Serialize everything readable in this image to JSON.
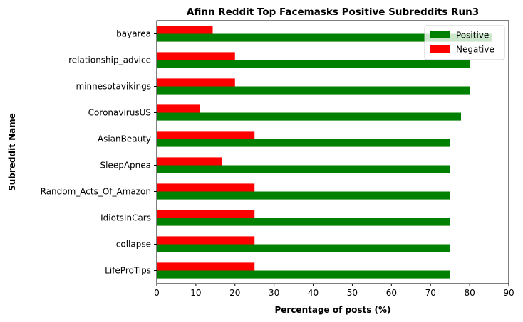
{
  "chart_data": {
    "type": "bar",
    "orientation": "horizontal",
    "title": "Afinn Reddit Top Facemasks Positive Subreddits Run3",
    "xlabel": "Percentage of posts (%)",
    "ylabel": "Subreddit Name",
    "xlim": [
      0,
      90
    ],
    "xticks": [
      0,
      10,
      20,
      30,
      40,
      50,
      60,
      70,
      80,
      90
    ],
    "categories": [
      "bayarea",
      "relationship_advice",
      "minnesotavikings",
      "CoronavirusUS",
      "AsianBeauty",
      "SleepApnea",
      "Random_Acts_Of_Amazon",
      "IdiotsInCars",
      "collapse",
      "LifeProTips"
    ],
    "series": [
      {
        "name": "Positive",
        "color": "#008000",
        "values": [
          85.7,
          80.0,
          80.0,
          77.8,
          75.0,
          75.0,
          75.0,
          75.0,
          75.0,
          75.0
        ]
      },
      {
        "name": "Negative",
        "color": "#ff0000",
        "values": [
          14.3,
          20.0,
          20.0,
          11.1,
          25.0,
          16.7,
          25.0,
          25.0,
          25.0,
          25.0
        ]
      }
    ],
    "grid": false,
    "legend": "top-right"
  }
}
